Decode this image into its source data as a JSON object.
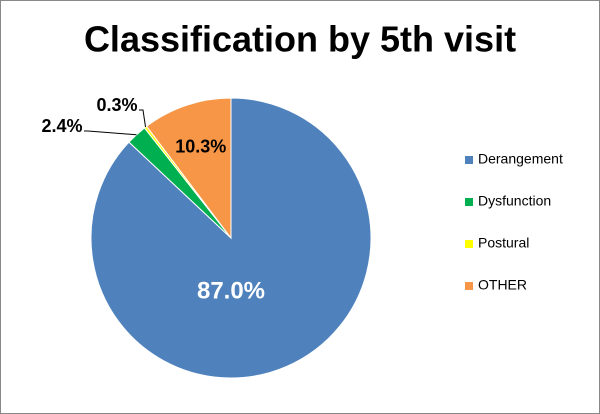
{
  "chart_data": {
    "type": "pie",
    "title": "Classification by 5th visit",
    "categories": [
      "Derangement",
      "Dysfunction",
      "Postural",
      "OTHER"
    ],
    "values": [
      87.0,
      2.4,
      0.3,
      10.3
    ],
    "value_labels": [
      "87.0%",
      "2.4%",
      "0.3%",
      "10.3%"
    ],
    "colors": [
      "#4f81bd",
      "#00b050",
      "#ffff00",
      "#f79646"
    ],
    "legend": "right"
  }
}
